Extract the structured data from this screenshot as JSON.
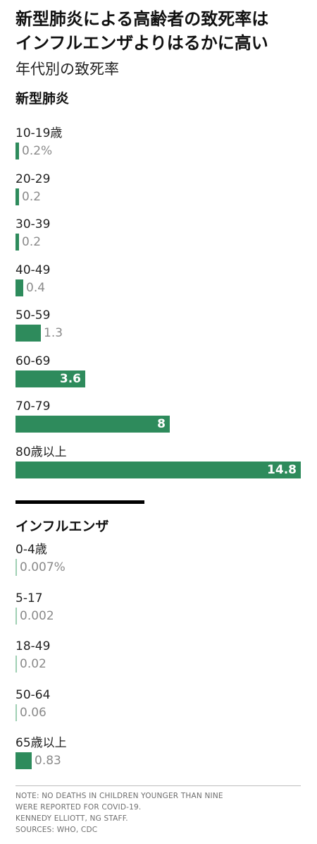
{
  "title_lines": [
    "新型肺炎による高齢者の致死率は",
    "インフルエンザよりはるかに高い"
  ],
  "subtitle": "年代別の致死率",
  "colors": {
    "bar": "#2e8b5c",
    "value_text": "#8a8a8a",
    "inside_text": "#ffffff"
  },
  "chart_data": [
    {
      "type": "bar",
      "orientation": "horizontal",
      "section_label": "新型肺炎",
      "categories": [
        "10-19歳",
        "20-29",
        "30-39",
        "40-49",
        "50-59",
        "60-69",
        "70-79",
        "80歳以上"
      ],
      "values": [
        0.2,
        0.2,
        0.2,
        0.4,
        1.3,
        3.6,
        8,
        14.8
      ],
      "value_labels": [
        "0.2%",
        "0.2",
        "0.2",
        "0.4",
        "1.3",
        "3.6",
        "8",
        "14.8"
      ],
      "unit": "%",
      "xlim": [
        0,
        14.8
      ]
    },
    {
      "type": "bar",
      "orientation": "horizontal",
      "section_label": "インフルエンザ",
      "categories": [
        "0-4歳",
        "5-17",
        "18-49",
        "50-64",
        "65歳以上"
      ],
      "values": [
        0.007,
        0.002,
        0.02,
        0.06,
        0.83
      ],
      "value_labels": [
        "0.007%",
        "0.002",
        "0.02",
        "0.06",
        "0.83"
      ],
      "unit": "%",
      "xlim": [
        0,
        14.8
      ]
    }
  ],
  "notes": [
    "NOTE: NO DEATHS IN CHILDREN YOUNGER THAN NINE",
    "WERE REPORTED FOR COVID-19.",
    "KENNEDY ELLIOTT, NG STAFF.",
    "SOURCES: WHO, CDC"
  ]
}
